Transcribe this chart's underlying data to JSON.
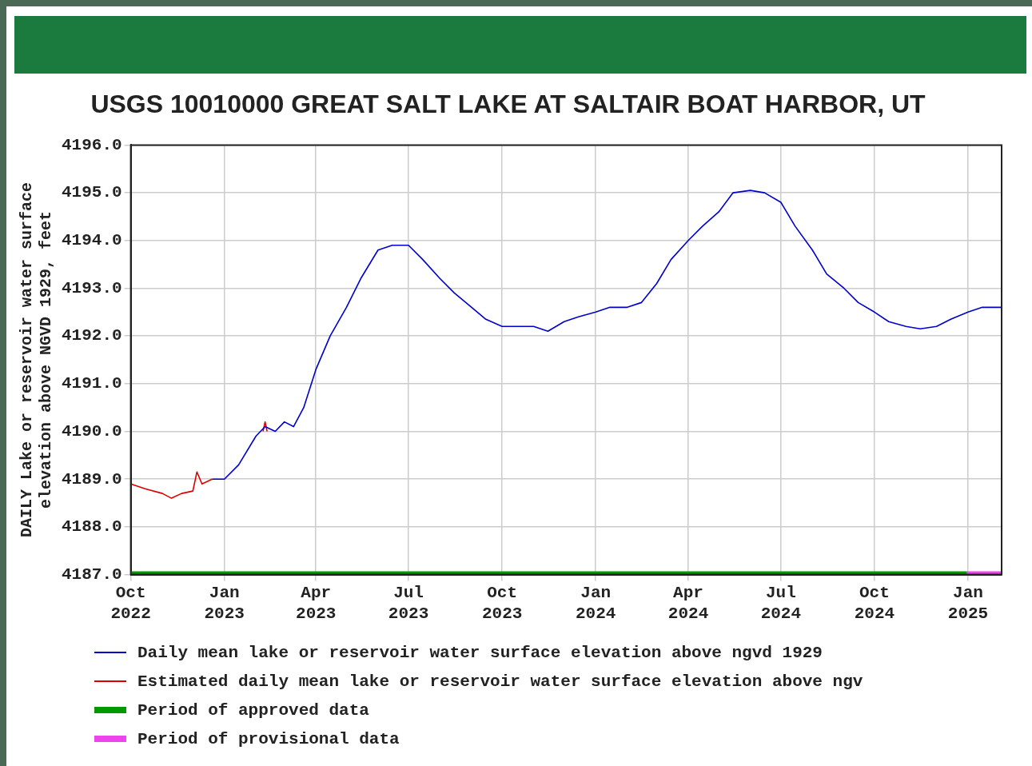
{
  "chart_data": {
    "type": "line",
    "title": "USGS 10010000 GREAT SALT LAKE AT SALTAIR BOAT HARBOR, UT",
    "ylabel": "DAILY Lake or reservoir water surface\nelevation above NGVD 1929, feet",
    "xlim": [
      "2022-10-01",
      "2025-02-03"
    ],
    "xticks": [
      {
        "value": "2022-10-01",
        "label": "Oct\n2022"
      },
      {
        "value": "2023-01-01",
        "label": "Jan\n2023"
      },
      {
        "value": "2023-04-01",
        "label": "Apr\n2023"
      },
      {
        "value": "2023-07-01",
        "label": "Jul\n2023"
      },
      {
        "value": "2023-10-01",
        "label": "Oct\n2023"
      },
      {
        "value": "2024-01-01",
        "label": "Jan\n2024"
      },
      {
        "value": "2024-04-01",
        "label": "Apr\n2024"
      },
      {
        "value": "2024-07-01",
        "label": "Jul\n2024"
      },
      {
        "value": "2024-10-01",
        "label": "Oct\n2024"
      },
      {
        "value": "2025-01-01",
        "label": "Jan\n2025"
      }
    ],
    "ylim": [
      4187,
      4196
    ],
    "yticks": [
      {
        "value": 4187,
        "label": "4187.0"
      },
      {
        "value": 4188,
        "label": "4188.0"
      },
      {
        "value": 4189,
        "label": "4189.0"
      },
      {
        "value": 4190,
        "label": "4190.0"
      },
      {
        "value": 4191,
        "label": "4191.0"
      },
      {
        "value": 4192,
        "label": "4192.0"
      },
      {
        "value": 4193,
        "label": "4193.0"
      },
      {
        "value": 4194,
        "label": "4194.0"
      },
      {
        "value": 4195,
        "label": "4195.0"
      },
      {
        "value": 4196,
        "label": "4196.0"
      }
    ],
    "grid": true,
    "legend": "bottom",
    "marker": "none",
    "line_style": "solid",
    "series": [
      {
        "name": "Daily mean lake or reservoir water surface elevation above ngvd 1929",
        "color": "#0000cc",
        "x": [
          "2022-12-20",
          "2023-01-01",
          "2023-01-15",
          "2023-02-01",
          "2023-02-10",
          "2023-02-20",
          "2023-03-01",
          "2023-03-10",
          "2023-03-20",
          "2023-04-01",
          "2023-04-15",
          "2023-05-01",
          "2023-05-15",
          "2023-06-01",
          "2023-06-15",
          "2023-07-01",
          "2023-07-15",
          "2023-08-01",
          "2023-08-15",
          "2023-09-01",
          "2023-09-15",
          "2023-10-01",
          "2023-10-15",
          "2023-11-01",
          "2023-11-15",
          "2023-12-01",
          "2023-12-15",
          "2024-01-01",
          "2024-01-15",
          "2024-02-01",
          "2024-02-15",
          "2024-03-01",
          "2024-03-15",
          "2024-04-01",
          "2024-04-15",
          "2024-05-01",
          "2024-05-15",
          "2024-06-01",
          "2024-06-15",
          "2024-07-01",
          "2024-07-15",
          "2024-08-01",
          "2024-08-15",
          "2024-09-01",
          "2024-09-15",
          "2024-10-01",
          "2024-10-15",
          "2024-11-01",
          "2024-11-15",
          "2024-12-01",
          "2024-12-15",
          "2025-01-01",
          "2025-01-15",
          "2025-02-03"
        ],
        "values": [
          4189.0,
          4189.0,
          4189.3,
          4189.9,
          4190.1,
          4190.0,
          4190.2,
          4190.1,
          4190.5,
          4191.3,
          4192.0,
          4192.6,
          4193.2,
          4193.8,
          4193.9,
          4193.9,
          4193.6,
          4193.2,
          4192.9,
          4192.6,
          4192.35,
          4192.2,
          4192.2,
          4192.2,
          4192.1,
          4192.3,
          4192.4,
          4192.5,
          4192.6,
          4192.6,
          4192.7,
          4193.1,
          4193.6,
          4194.0,
          4194.3,
          4194.6,
          4195.0,
          4195.05,
          4195.0,
          4194.8,
          4194.3,
          4193.8,
          4193.3,
          4193.0,
          4192.7,
          4192.5,
          4192.3,
          4192.2,
          4192.15,
          4192.2,
          4192.35,
          4192.5,
          4192.6,
          4192.6
        ]
      },
      {
        "name": "Estimated daily mean lake or reservoir water surface elevation above ngv",
        "color": "#dd0000",
        "x": [
          "2022-10-01",
          "2022-10-15",
          "2022-11-01",
          "2022-11-10",
          "2022-11-20",
          "2022-12-01",
          "2022-12-05",
          "2022-12-10",
          "2022-12-20",
          "2023-01-20",
          "2023-02-08",
          "2023-02-10",
          "2023-02-12"
        ],
        "values": [
          4188.9,
          4188.8,
          4188.7,
          4188.6,
          4188.7,
          4188.75,
          4189.15,
          4188.9,
          4189.0,
          null,
          4190.0,
          4190.2,
          4190.0
        ]
      },
      {
        "name": "Period of approved data",
        "color": "#009900",
        "x": [
          "2022-10-01",
          "2024-12-31"
        ],
        "values": [
          4187,
          4187
        ]
      },
      {
        "name": "Period of provisional data",
        "color": "#ee44ee",
        "x": [
          "2024-12-31",
          "2025-02-03"
        ],
        "values": [
          4187,
          4187
        ]
      }
    ]
  }
}
